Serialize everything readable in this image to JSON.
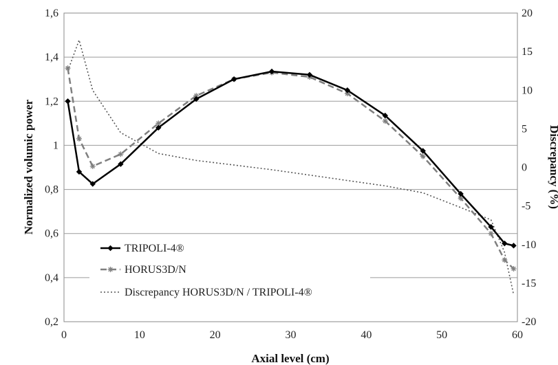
{
  "chart_data": {
    "type": "line",
    "xlabel": "Axial level (cm)",
    "ylabel": "Normalized volumic power",
    "y2label": "Discrepancy (%)",
    "xlim": [
      0,
      60
    ],
    "ylim": [
      0.2,
      1.6
    ],
    "y2lim": [
      -20,
      20
    ],
    "xticks": [
      "0",
      "10",
      "20",
      "30",
      "40",
      "50",
      "60"
    ],
    "yticks": [
      "0,2",
      "0,4",
      "0,6",
      "0,8",
      "1",
      "1,2",
      "1,4",
      "1,6"
    ],
    "y2ticks": [
      "-20",
      "-15",
      "-10",
      "-5",
      "0",
      "5",
      "10",
      "15",
      "20"
    ],
    "grid": "horizontal",
    "legend_position": "bottom-left",
    "series": [
      {
        "name": "TRIPOLI-4®",
        "axis": "left",
        "color": "#000000",
        "style": "solid",
        "marker": "diamond",
        "x": [
          0.5,
          2,
          3.8,
          7.5,
          12.5,
          17.5,
          22.5,
          27.5,
          32.5,
          37.5,
          42.5,
          47.5,
          52.5,
          56.5,
          58.3,
          59.5
        ],
        "values": [
          1.2,
          0.88,
          0.825,
          0.915,
          1.08,
          1.21,
          1.3,
          1.335,
          1.32,
          1.25,
          1.135,
          0.975,
          0.78,
          0.63,
          0.555,
          0.545
        ]
      },
      {
        "name": "HORUS3D/N",
        "axis": "left",
        "color": "#7f7f7f",
        "style": "dashed",
        "marker": "asterisk",
        "x": [
          0.5,
          2,
          3.8,
          7.5,
          12.5,
          17.5,
          22.5,
          27.5,
          32.5,
          37.5,
          42.5,
          47.5,
          52.5,
          56.5,
          58.3,
          59.5
        ],
        "values": [
          1.35,
          1.03,
          0.905,
          0.96,
          1.1,
          1.225,
          1.3,
          1.33,
          1.31,
          1.235,
          1.11,
          0.95,
          0.76,
          0.6,
          0.48,
          0.44
        ]
      },
      {
        "name": "Discrepancy HORUS3D/N / TRIPOLI-4®",
        "axis": "right",
        "color": "#555555",
        "style": "dotted",
        "marker": "none",
        "x": [
          0.5,
          2,
          3.8,
          7.5,
          12.5,
          17.5,
          22.5,
          27.5,
          32.5,
          37.5,
          42.5,
          47.5,
          52.5,
          56.5,
          58.3,
          59.5
        ],
        "values": [
          12.5,
          16.5,
          10,
          4.5,
          1.8,
          0.9,
          0.3,
          -0.3,
          -1,
          -1.7,
          -2.4,
          -3.3,
          -5.2,
          -6.8,
          -11,
          -16.5
        ]
      }
    ]
  }
}
